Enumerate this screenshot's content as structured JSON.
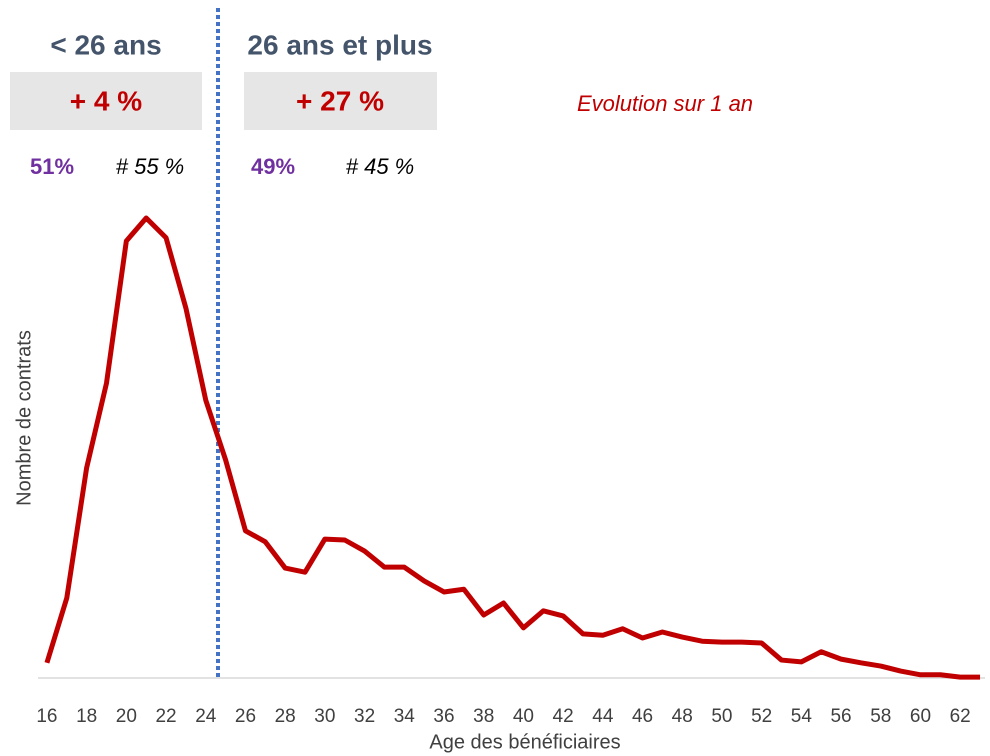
{
  "chart_data": {
    "type": "line",
    "x_label": "Age des bénéficiaires",
    "y_label": "Nombre de contrats",
    "x": [
      16,
      17,
      18,
      19,
      20,
      21,
      22,
      23,
      24,
      25,
      26,
      27,
      28,
      29,
      30,
      31,
      32,
      33,
      34,
      35,
      36,
      37,
      38,
      39,
      40,
      41,
      42,
      43,
      44,
      45,
      46,
      47,
      48,
      49,
      50,
      51,
      52,
      53,
      54,
      55,
      56,
      57,
      58,
      59,
      60,
      61,
      62,
      63
    ],
    "series": [
      {
        "name": "Nombre de contrats",
        "color": "#c00000",
        "values": [
          3.3,
          17.4,
          45.7,
          64.1,
          95.0,
          100,
          95.7,
          80.4,
          60.4,
          47.4,
          32.0,
          29.6,
          23.9,
          23.0,
          30.2,
          30.0,
          27.6,
          24.1,
          24.1,
          21.1,
          18.7,
          19.3,
          13.7,
          16.3,
          10.9,
          14.6,
          13.5,
          9.6,
          9.3,
          10.7,
          8.7,
          10.0,
          8.9,
          8.0,
          7.8,
          7.8,
          7.6,
          3.9,
          3.5,
          5.7,
          4.1,
          3.3,
          2.6,
          1.5,
          0.7,
          0.7,
          0.2,
          0.2
        ]
      }
    ],
    "xlim": [
      15.55,
      63.25
    ],
    "xticks": [
      16,
      18,
      20,
      22,
      24,
      26,
      28,
      30,
      32,
      34,
      36,
      38,
      40,
      42,
      44,
      46,
      48,
      50,
      52,
      54,
      56,
      58,
      60,
      62
    ],
    "ylim": [
      0,
      100
    ],
    "annotations": {
      "group_left": "< 26 ans",
      "group_right": "26 ans et plus",
      "change_left": "+ 4 %",
      "change_right": "+ 27 %",
      "change_note": "Evolution sur 1 an",
      "share_left": "51%",
      "ref_left": "# 55 %",
      "share_right": "49%",
      "ref_right": "# 45 %"
    }
  }
}
